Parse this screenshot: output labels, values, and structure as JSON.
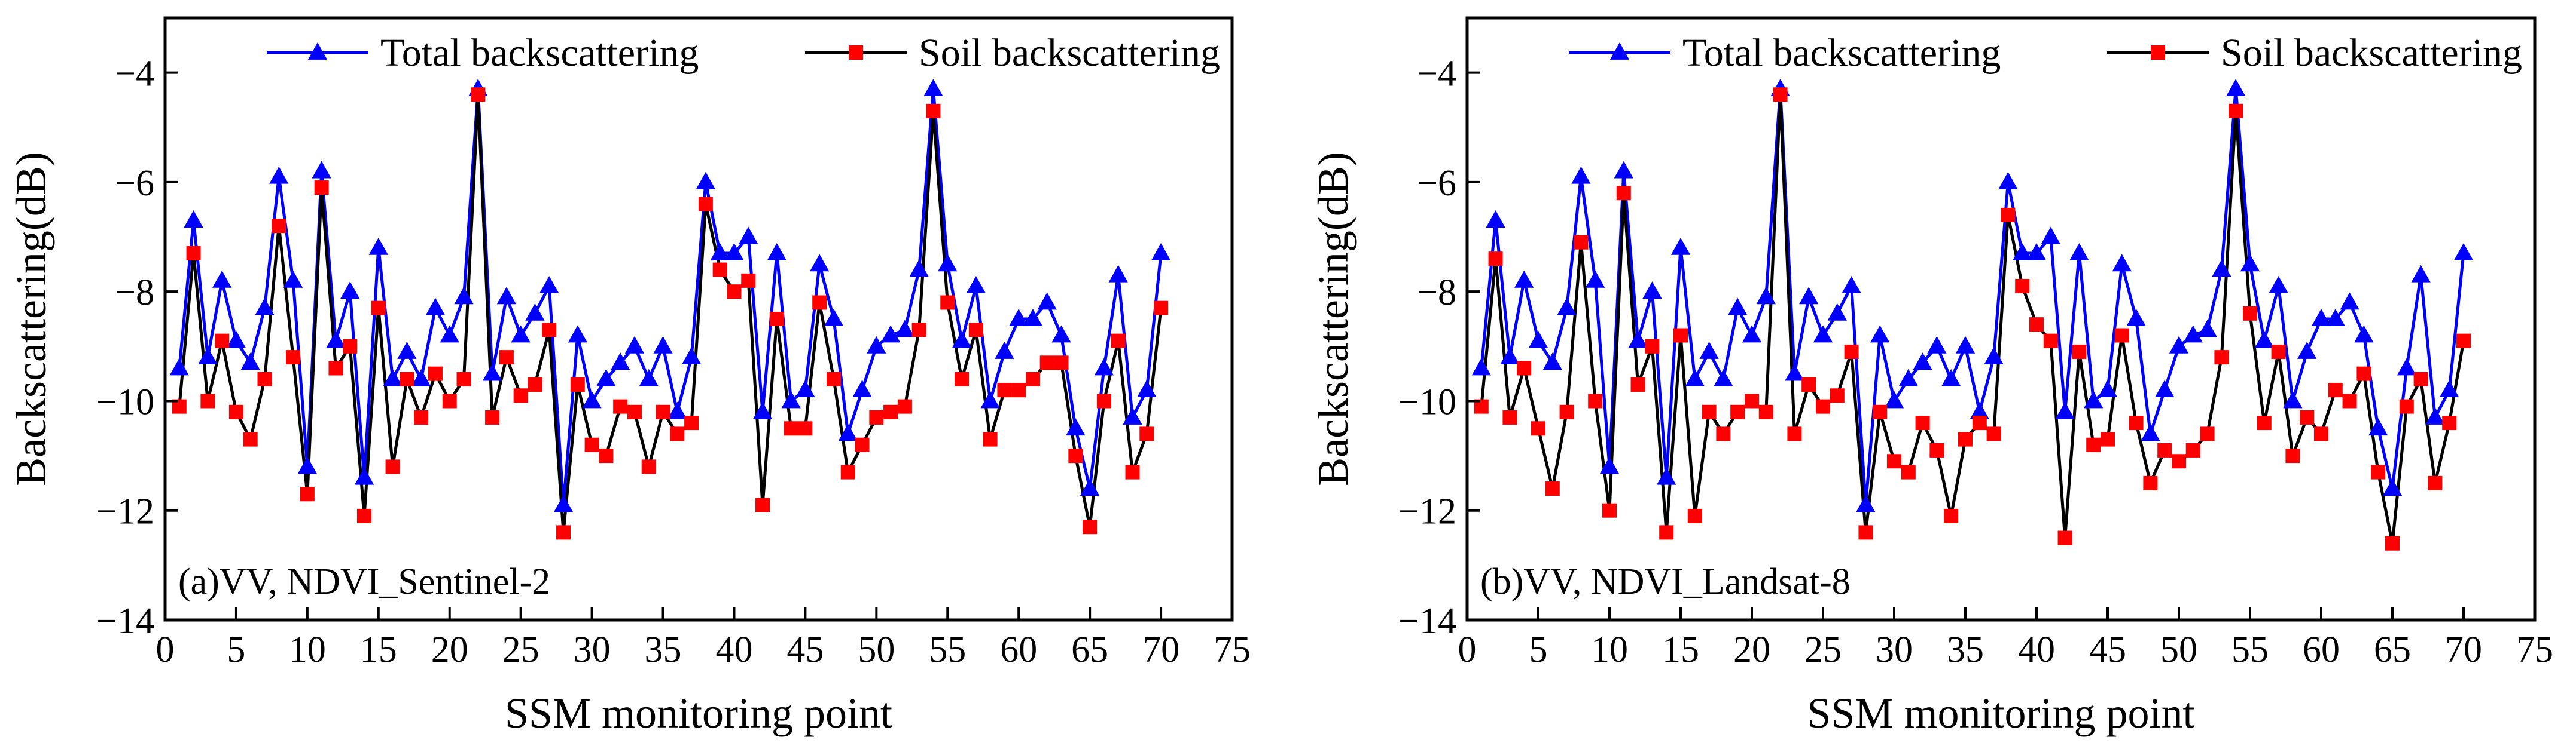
{
  "figure": {
    "colors": {
      "total": "#0000ff",
      "soil_line": "#000000",
      "soil_marker": "#ff0000",
      "axes": "#000000"
    },
    "legend": {
      "placement": "top"
    }
  },
  "chart_data": [
    {
      "type": "line",
      "panel_label": "(a)VV, NDVI_Sentinel-2",
      "xlabel": "SSM monitoring point",
      "ylabel": "Backscattering(dB)",
      "xlim": [
        0,
        75
      ],
      "ylim": [
        -14,
        -3
      ],
      "xticks": [
        0,
        5,
        10,
        15,
        20,
        25,
        30,
        35,
        40,
        45,
        50,
        55,
        60,
        65,
        70,
        75
      ],
      "yticks": [
        -14,
        -12,
        -10,
        -8,
        -6,
        -4
      ],
      "ytick_labels": [
        "−14",
        "−12",
        "−10",
        "−8",
        "−6",
        "−4"
      ],
      "x": [
        1,
        2,
        3,
        4,
        5,
        6,
        7,
        8,
        9,
        10,
        11,
        12,
        13,
        14,
        15,
        16,
        17,
        18,
        19,
        20,
        21,
        22,
        23,
        24,
        25,
        26,
        27,
        28,
        29,
        30,
        31,
        32,
        33,
        34,
        35,
        36,
        37,
        38,
        39,
        40,
        41,
        42,
        43,
        44,
        45,
        46,
        47,
        48,
        49,
        50,
        51,
        52,
        53,
        54,
        55,
        56,
        57,
        58,
        59,
        60,
        61,
        62,
        63,
        64,
        65,
        66,
        67,
        68,
        69,
        70
      ],
      "series": [
        {
          "name": "Total backscattering",
          "marker": "triangle",
          "values": [
            -9.4,
            -6.7,
            -9.2,
            -7.8,
            -8.9,
            -9.3,
            -8.3,
            -5.9,
            -7.8,
            -11.2,
            -5.8,
            -8.9,
            -8.0,
            -11.4,
            -7.2,
            -9.6,
            -9.1,
            -9.6,
            -8.3,
            -8.8,
            -8.1,
            -4.3,
            -9.5,
            -8.1,
            -8.8,
            -8.4,
            -7.9,
            -11.9,
            -8.8,
            -10.0,
            -9.6,
            -9.3,
            -9.0,
            -9.6,
            -9.0,
            -10.2,
            -9.2,
            -6.0,
            -7.3,
            -7.3,
            -7.0,
            -10.2,
            -7.3,
            -10.0,
            -9.8,
            -7.5,
            -8.5,
            -10.6,
            -9.8,
            -9.0,
            -8.8,
            -8.7,
            -7.6,
            -4.3,
            -7.5,
            -8.9,
            -7.9,
            -10.0,
            -9.1,
            -8.5,
            -8.5,
            -8.2,
            -8.8,
            -10.5,
            -11.6,
            -9.4,
            -7.7,
            -10.3,
            -9.8,
            -7.3
          ]
        },
        {
          "name": "Soil backscattering",
          "marker": "square",
          "values": [
            -10.1,
            -7.3,
            -10.0,
            -8.9,
            -10.2,
            -10.7,
            -9.6,
            -6.8,
            -9.2,
            -11.7,
            -6.1,
            -9.4,
            -9.0,
            -12.1,
            -8.3,
            -11.2,
            -9.6,
            -10.3,
            -9.5,
            -10.0,
            -9.6,
            -4.4,
            -10.3,
            -9.2,
            -9.9,
            -9.7,
            -8.7,
            -12.4,
            -9.7,
            -10.8,
            -11.0,
            -10.1,
            -10.2,
            -11.2,
            -10.2,
            -10.6,
            -10.4,
            -6.4,
            -7.6,
            -8.0,
            -7.8,
            -11.9,
            -8.5,
            -10.5,
            -10.5,
            -8.2,
            -9.6,
            -11.3,
            -10.8,
            -10.3,
            -10.2,
            -10.1,
            -8.7,
            -4.7,
            -8.2,
            -9.6,
            -8.7,
            -10.7,
            -9.8,
            -9.8,
            -9.6,
            -9.3,
            -9.3,
            -11.0,
            -12.3,
            -10.0,
            -8.9,
            -11.3,
            -10.6,
            -8.3
          ]
        }
      ]
    },
    {
      "type": "line",
      "panel_label": "(b)VV, NDVI_Landsat-8",
      "xlabel": "SSM monitoring point",
      "ylabel": "Backscattering(dB)",
      "xlim": [
        0,
        75
      ],
      "ylim": [
        -14,
        -3
      ],
      "xticks": [
        0,
        5,
        10,
        15,
        20,
        25,
        30,
        35,
        40,
        45,
        50,
        55,
        60,
        65,
        70,
        75
      ],
      "yticks": [
        -14,
        -12,
        -10,
        -8,
        -6,
        -4
      ],
      "ytick_labels": [
        "−14",
        "−12",
        "−10",
        "−8",
        "−6",
        "−4"
      ],
      "x": [
        1,
        2,
        3,
        4,
        5,
        6,
        7,
        8,
        9,
        10,
        11,
        12,
        13,
        14,
        15,
        16,
        17,
        18,
        19,
        20,
        21,
        22,
        23,
        24,
        25,
        26,
        27,
        28,
        29,
        30,
        31,
        32,
        33,
        34,
        35,
        36,
        37,
        38,
        39,
        40,
        41,
        42,
        43,
        44,
        45,
        46,
        47,
        48,
        49,
        50,
        51,
        52,
        53,
        54,
        55,
        56,
        57,
        58,
        59,
        60,
        61,
        62,
        63,
        64,
        65,
        66,
        67,
        68,
        69,
        70
      ],
      "series": [
        {
          "name": "Total backscattering",
          "marker": "triangle",
          "values": [
            -9.4,
            -6.7,
            -9.2,
            -7.8,
            -8.9,
            -9.3,
            -8.3,
            -5.9,
            -7.8,
            -11.2,
            -5.8,
            -8.9,
            -8.0,
            -11.4,
            -7.2,
            -9.6,
            -9.1,
            -9.6,
            -8.3,
            -8.8,
            -8.1,
            -4.3,
            -9.5,
            -8.1,
            -8.8,
            -8.4,
            -7.9,
            -11.9,
            -8.8,
            -10.0,
            -9.6,
            -9.3,
            -9.0,
            -9.6,
            -9.0,
            -10.2,
            -9.2,
            -6.0,
            -7.3,
            -7.3,
            -7.0,
            -10.2,
            -7.3,
            -10.0,
            -9.8,
            -7.5,
            -8.5,
            -10.6,
            -9.8,
            -9.0,
            -8.8,
            -8.7,
            -7.6,
            -4.3,
            -7.5,
            -8.9,
            -7.9,
            -10.0,
            -9.1,
            -8.5,
            -8.5,
            -8.2,
            -8.8,
            -10.5,
            -11.6,
            -9.4,
            -7.7,
            -10.3,
            -9.8,
            -7.3
          ]
        },
        {
          "name": "Soil backscattering",
          "marker": "square",
          "values": [
            -10.1,
            -7.4,
            -10.3,
            -9.4,
            -10.5,
            -11.6,
            -10.2,
            -7.1,
            -10.0,
            -12.0,
            -6.2,
            -9.7,
            -9.0,
            -12.4,
            -8.8,
            -12.1,
            -10.2,
            -10.6,
            -10.2,
            -10.0,
            -10.2,
            -4.4,
            -10.6,
            -9.7,
            -10.1,
            -9.9,
            -9.1,
            -12.4,
            -10.2,
            -11.1,
            -11.3,
            -10.4,
            -10.9,
            -12.1,
            -10.7,
            -10.4,
            -10.6,
            -6.6,
            -7.9,
            -8.6,
            -8.9,
            -12.5,
            -9.1,
            -10.8,
            -10.7,
            -8.8,
            -10.4,
            -11.5,
            -10.9,
            -11.1,
            -10.9,
            -10.6,
            -9.2,
            -4.7,
            -8.4,
            -10.4,
            -9.1,
            -11.0,
            -10.3,
            -10.6,
            -9.8,
            -10.0,
            -9.5,
            -11.3,
            -12.6,
            -10.1,
            -9.6,
            -11.5,
            -10.4,
            -8.9
          ]
        }
      ]
    }
  ]
}
